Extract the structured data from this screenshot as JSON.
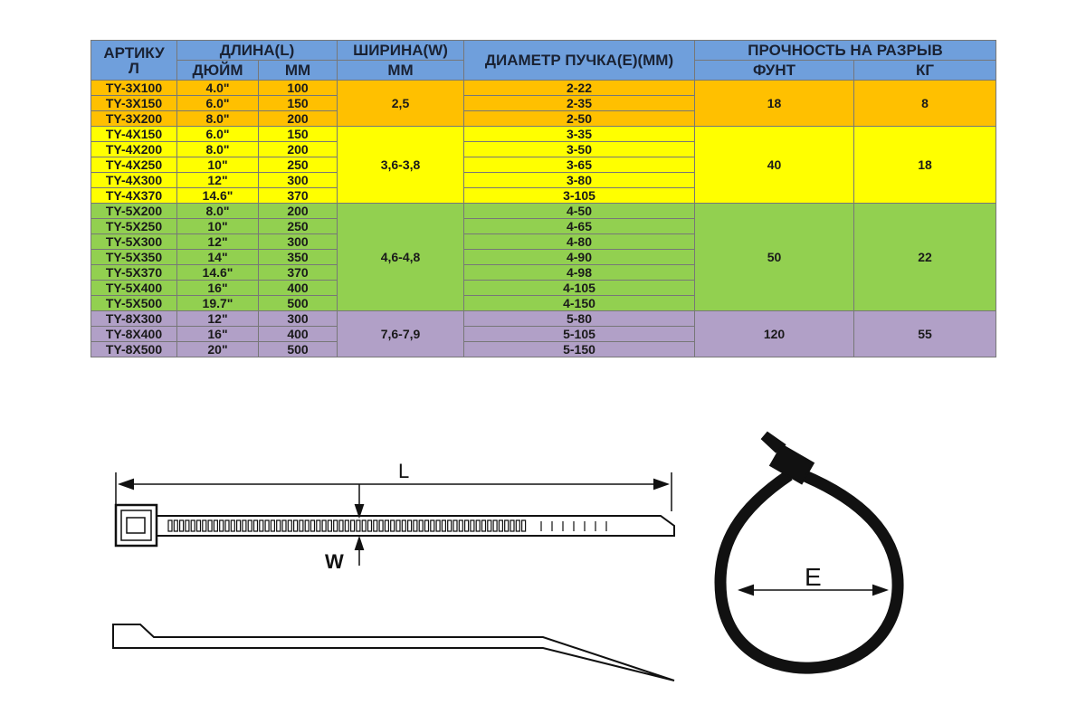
{
  "header": {
    "article": [
      "АРТИКУ",
      "Л"
    ],
    "length": "ДЛИНА(L)",
    "inch": "ДЮЙМ",
    "mm": "ММ",
    "width": "ШИРИНА(W)",
    "width_unit": "ММ",
    "diameter": "ДИАМЕТР ПУЧКА(E)(ММ)",
    "strength": "ПРОЧНОСТЬ НА РАЗРЫВ",
    "lb": "ФУНТ",
    "kg": "КГ"
  },
  "groups": [
    {
      "color": "#ffc000",
      "width": "2,5",
      "lb": "18",
      "kg": "8",
      "rows": [
        [
          "TY-3X100",
          "4.0\"",
          "100",
          "2-22"
        ],
        [
          "TY-3X150",
          "6.0\"",
          "150",
          "2-35"
        ],
        [
          "TY-3X200",
          "8.0\"",
          "200",
          "2-50"
        ]
      ]
    },
    {
      "color": "#ffff00",
      "width": "3,6-3,8",
      "lb": "40",
      "kg": "18",
      "rows": [
        [
          "TY-4X150",
          "6.0\"",
          "150",
          "3-35"
        ],
        [
          "TY-4X200",
          "8.0\"",
          "200",
          "3-50"
        ],
        [
          "TY-4X250",
          "10\"",
          "250",
          "3-65"
        ],
        [
          "TY-4X300",
          "12\"",
          "300",
          "3-80"
        ],
        [
          "TY-4X370",
          "14.6\"",
          "370",
          "3-105"
        ]
      ]
    },
    {
      "color": "#92d050",
      "width": "4,6-4,8",
      "lb": "50",
      "kg": "22",
      "rows": [
        [
          "TY-5X200",
          "8.0\"",
          "200",
          "4-50"
        ],
        [
          "TY-5X250",
          "10\"",
          "250",
          "4-65"
        ],
        [
          "TY-5X300",
          "12\"",
          "300",
          "4-80"
        ],
        [
          "TY-5X350",
          "14\"",
          "350",
          "4-90"
        ],
        [
          "TY-5X370",
          "14.6\"",
          "370",
          "4-98"
        ],
        [
          "TY-5X400",
          "16\"",
          "400",
          "4-105"
        ],
        [
          "TY-5X500",
          "19.7\"",
          "500",
          "4-150"
        ]
      ]
    },
    {
      "color": "#b1a0c7",
      "width": "7,6-7,9",
      "lb": "120",
      "kg": "55",
      "rows": [
        [
          "TY-8X300",
          "12\"",
          "300",
          "5-80"
        ],
        [
          "TY-8X400",
          "16\"",
          "400",
          "5-105"
        ],
        [
          "TY-8X500",
          "20\"",
          "500",
          "5-150"
        ]
      ]
    }
  ],
  "diagram": {
    "length_label": "L",
    "width_label": "W",
    "diameter_label": "E"
  }
}
